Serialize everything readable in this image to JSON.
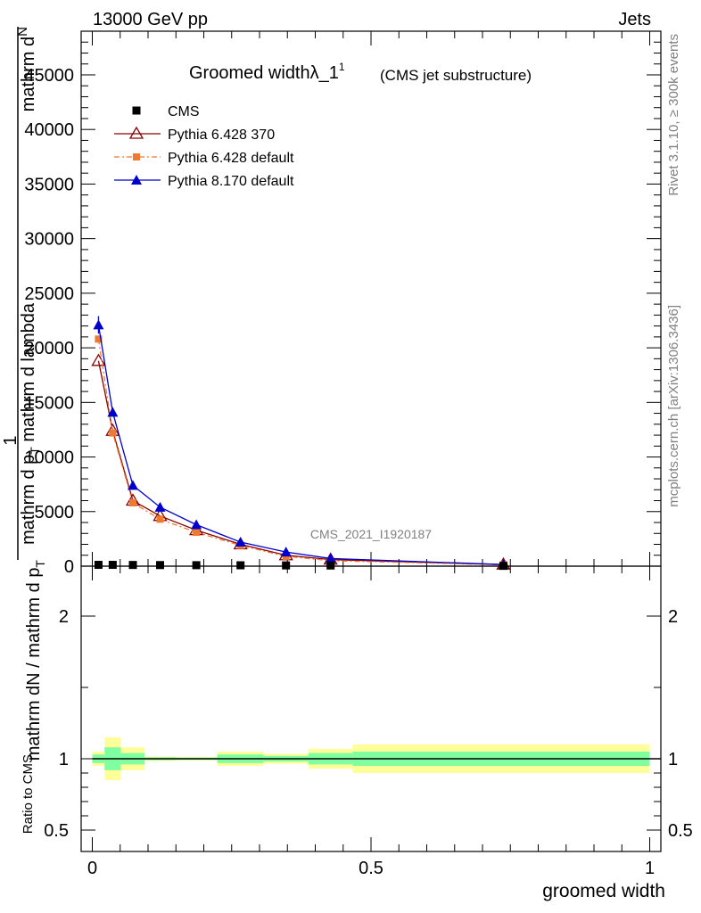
{
  "header": {
    "left": "13000 GeV pp",
    "right": "Jets"
  },
  "side": {
    "top": "Rivet 3.1.10, ≥ 300k events",
    "bottom": "mcplots.cern.ch [arXiv:1306.3436]"
  },
  "chart_data": [
    {
      "type": "line",
      "title": "Groomed width",
      "title_symbol": "λ_1",
      "title_sup": "1",
      "subtitle": "(CMS jet substructure)",
      "watermark": "CMS_2021_I1920187",
      "ylabel_num_pre": "mathrm d",
      "ylabel_num_N": "N",
      "ylabel_den": "mathrm d p",
      "ylabel_den_sub": "T",
      "ylabel_den_post": " mathrm d lambda",
      "ylabel_inv": "1",
      "ylabel_inv_den": "mathrm dN / mathrm d p",
      "ylabel_inv_den_sub": "T",
      "ylim": [
        0,
        49000
      ],
      "xlim": [
        -0.02,
        1.02
      ],
      "yticks": [
        0,
        5000,
        10000,
        15000,
        20000,
        25000,
        30000,
        35000,
        40000,
        45000
      ],
      "ytick_labels": [
        "0",
        "5000",
        "10000",
        "15000",
        "20000",
        "25000",
        "30000",
        "35000",
        "40000",
        "45000"
      ],
      "legend_position": "top-left",
      "cms_x": [
        0.0111,
        0.0366,
        0.0728,
        0.1216,
        0.1866,
        0.2659,
        0.3475,
        0.4275,
        0.7375
      ],
      "series": [
        {
          "name": "CMS",
          "color": "#000000",
          "marker": "square",
          "x": [
            0.0111,
            0.0366,
            0.0728,
            0.1216,
            0.1866,
            0.2659,
            0.3475,
            0.4275,
            0.7375
          ],
          "y": [
            120,
            120,
            110,
            100,
            90,
            80,
            70,
            60,
            30
          ]
        },
        {
          "name": "Pythia 6.428 370",
          "color": "#8b0000",
          "marker": "triangle-open",
          "x": [
            0.0111,
            0.0366,
            0.0728,
            0.1216,
            0.1866,
            0.2659,
            0.3475,
            0.4275,
            0.7375
          ],
          "y": [
            18800,
            12400,
            6000,
            4600,
            3300,
            2000,
            1000,
            600,
            150
          ]
        },
        {
          "name": "Pythia 6.428 default",
          "color": "#ee7a30",
          "marker": "square-small",
          "dash": true,
          "x": [
            0.0111,
            0.0366,
            0.0728,
            0.1216,
            0.1866,
            0.2659,
            0.3475,
            0.4275,
            0.7375
          ],
          "y": [
            20800,
            12200,
            5800,
            4300,
            3100,
            1900,
            900,
            500,
            120
          ]
        },
        {
          "name": "Pythia 8.170 default",
          "color": "#0000cc",
          "marker": "triangle",
          "x": [
            0.0111,
            0.0366,
            0.0728,
            0.1216,
            0.1866,
            0.2659,
            0.3475,
            0.4275,
            0.7375
          ],
          "y": [
            22100,
            14100,
            7400,
            5400,
            3800,
            2200,
            1300,
            700,
            150
          ],
          "err": [
            800,
            0,
            0,
            0,
            0,
            0,
            0,
            0,
            0
          ]
        }
      ]
    },
    {
      "type": "area",
      "ylabel": "Ratio to CMS",
      "xlabel": "groomed width",
      "ylim": [
        0.35,
        2.35
      ],
      "xlim": [
        -0.02,
        1.02
      ],
      "yticks": [
        0.5,
        1,
        2
      ],
      "ytick_labels": [
        "0.5",
        "1",
        "2"
      ],
      "xticks": [
        0,
        0.5,
        1
      ],
      "xtick_labels": [
        "0",
        "0.5",
        "1"
      ],
      "reference": 1,
      "bins": [
        {
          "x0": 0.0,
          "x1": 0.022,
          "inner": 0.03,
          "outer": 0.05
        },
        {
          "x0": 0.022,
          "x1": 0.051,
          "inner": 0.08,
          "outer": 0.15
        },
        {
          "x0": 0.051,
          "x1": 0.094,
          "inner": 0.04,
          "outer": 0.08
        },
        {
          "x0": 0.094,
          "x1": 0.149,
          "inner": 0.01,
          "outer": 0.015
        },
        {
          "x0": 0.149,
          "x1": 0.224,
          "inner": 0.008,
          "outer": 0.012
        },
        {
          "x0": 0.224,
          "x1": 0.307,
          "inner": 0.03,
          "outer": 0.05
        },
        {
          "x0": 0.307,
          "x1": 0.388,
          "inner": 0.02,
          "outer": 0.035
        },
        {
          "x0": 0.388,
          "x1": 0.467,
          "inner": 0.04,
          "outer": 0.07
        },
        {
          "x0": 0.467,
          "x1": 1.0,
          "inner": 0.05,
          "outer": 0.1
        }
      ]
    }
  ]
}
